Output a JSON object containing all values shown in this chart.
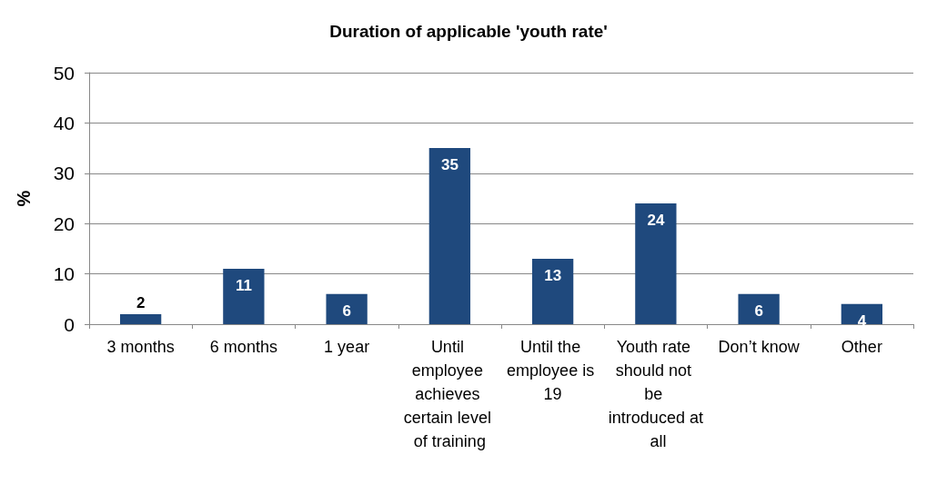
{
  "chart_data": {
    "type": "bar",
    "title": "Duration of applicable 'youth rate'",
    "ylabel": "%",
    "categories": [
      "3 months",
      "6 months",
      "1 year",
      "Until employee achieves certain level of training",
      "Until the employee is 19",
      "Youth rate should not be introduced at all",
      "Don’t know",
      "Other"
    ],
    "values": [
      2,
      11,
      6,
      35,
      13,
      24,
      6,
      4
    ],
    "color": "#1f497d",
    "ylim": [
      0,
      50
    ],
    "yticks": [
      0,
      10,
      20,
      30,
      40,
      50
    ],
    "grid": "y",
    "data_labels": true
  }
}
